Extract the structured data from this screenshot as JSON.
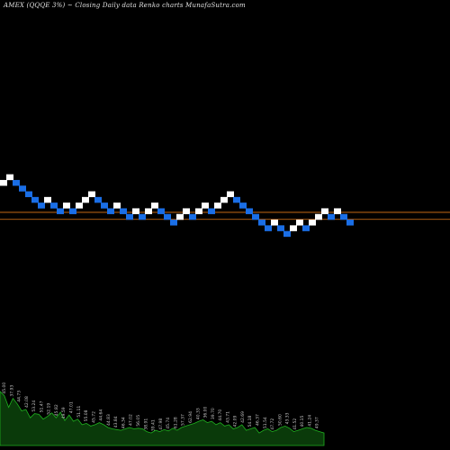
{
  "header": {
    "title": "AMEX  (QQQE 3%) ~   Closing Daily data  Renko  charts MunafaSutra.com"
  },
  "colors": {
    "background": "#000000",
    "up_brick": "#ffffff",
    "down_brick": "#1a6ee6",
    "level_line": "#e07818",
    "volume_fill": "#0a3a0a",
    "volume_stroke": "#1fb01f",
    "volume_label": "#c8c8c8"
  },
  "chart_data": {
    "type": "renko",
    "box_size": "3%",
    "levels": [
      1,
      0
    ],
    "bricks": [
      {
        "dir": "up",
        "level": 6
      },
      {
        "dir": "up",
        "level": 7
      },
      {
        "dir": "down",
        "level": 6
      },
      {
        "dir": "down",
        "level": 5
      },
      {
        "dir": "down",
        "level": 4
      },
      {
        "dir": "down",
        "level": 3
      },
      {
        "dir": "down",
        "level": 2
      },
      {
        "dir": "up",
        "level": 3
      },
      {
        "dir": "down",
        "level": 2
      },
      {
        "dir": "down",
        "level": 1
      },
      {
        "dir": "up",
        "level": 2
      },
      {
        "dir": "down",
        "level": 1
      },
      {
        "dir": "up",
        "level": 2
      },
      {
        "dir": "up",
        "level": 3
      },
      {
        "dir": "up",
        "level": 4
      },
      {
        "dir": "down",
        "level": 3
      },
      {
        "dir": "down",
        "level": 2
      },
      {
        "dir": "down",
        "level": 1
      },
      {
        "dir": "up",
        "level": 2
      },
      {
        "dir": "down",
        "level": 1
      },
      {
        "dir": "down",
        "level": 0
      },
      {
        "dir": "up",
        "level": 1
      },
      {
        "dir": "down",
        "level": 0
      },
      {
        "dir": "up",
        "level": 1
      },
      {
        "dir": "up",
        "level": 2
      },
      {
        "dir": "down",
        "level": 1
      },
      {
        "dir": "down",
        "level": 0
      },
      {
        "dir": "down",
        "level": -1
      },
      {
        "dir": "up",
        "level": 0
      },
      {
        "dir": "up",
        "level": 1
      },
      {
        "dir": "down",
        "level": 0
      },
      {
        "dir": "up",
        "level": 1
      },
      {
        "dir": "up",
        "level": 2
      },
      {
        "dir": "down",
        "level": 1
      },
      {
        "dir": "up",
        "level": 2
      },
      {
        "dir": "up",
        "level": 3
      },
      {
        "dir": "up",
        "level": 4
      },
      {
        "dir": "down",
        "level": 3
      },
      {
        "dir": "down",
        "level": 2
      },
      {
        "dir": "down",
        "level": 1
      },
      {
        "dir": "down",
        "level": 0
      },
      {
        "dir": "down",
        "level": -1
      },
      {
        "dir": "down",
        "level": -2
      },
      {
        "dir": "up",
        "level": -1
      },
      {
        "dir": "down",
        "level": -2
      },
      {
        "dir": "down",
        "level": -3
      },
      {
        "dir": "up",
        "level": -2
      },
      {
        "dir": "up",
        "level": -1
      },
      {
        "dir": "down",
        "level": -2
      },
      {
        "dir": "up",
        "level": -1
      },
      {
        "dir": "up",
        "level": 0
      },
      {
        "dir": "up",
        "level": 1
      },
      {
        "dir": "down",
        "level": 0
      },
      {
        "dir": "up",
        "level": 1
      },
      {
        "dir": "down",
        "level": 0
      },
      {
        "dir": "down",
        "level": -1
      }
    ],
    "volume": [
      78,
      72,
      55,
      68,
      60,
      50,
      52,
      40,
      46,
      45,
      38,
      42,
      47,
      40,
      48,
      36,
      44,
      35,
      38,
      30,
      32,
      28,
      30,
      33,
      30,
      26,
      24,
      23,
      22,
      24,
      26,
      24,
      25,
      24,
      20,
      18,
      22,
      20,
      23,
      21,
      25,
      22,
      26,
      28,
      30,
      32,
      35,
      37,
      33,
      35,
      30,
      33,
      28,
      30,
      24,
      26,
      30,
      22,
      24,
      26,
      18,
      22,
      24,
      20,
      22,
      26,
      28,
      25,
      20,
      22,
      24,
      26,
      25,
      22,
      20,
      18
    ],
    "volume_labels": [
      "45.00",
      "37.93",
      "44.73",
      "42.08",
      "53.24",
      "51.47",
      "52.19",
      "45.82",
      "49.59",
      "47.01",
      "51.11",
      "55.08",
      "45.72",
      "44.64",
      "44.83",
      "43.84",
      "46.34",
      "47.02",
      "56.05",
      "38.91",
      "39.41",
      "47.98",
      "45.74",
      "61.28",
      "57.37",
      "62.94",
      "40.33",
      "36.00",
      "39.70",
      "44.70",
      "43.71",
      "42.09",
      "42.69",
      "54.18",
      "46.37",
      "51.54",
      "47.72",
      "50.60",
      "43.33",
      "41.52",
      "40.15",
      "41.24",
      "49.37"
    ]
  }
}
